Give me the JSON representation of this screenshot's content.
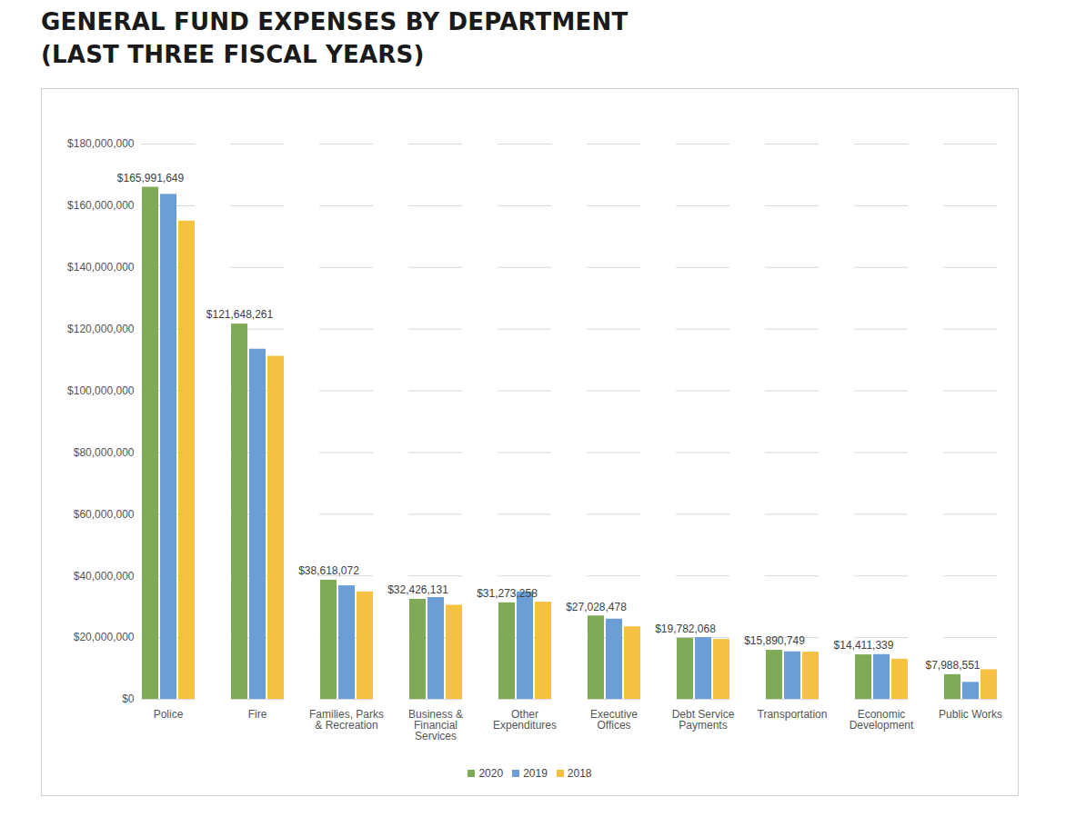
{
  "chart_data": {
    "type": "bar",
    "title": "GENERAL FUND EXPENSES BY DEPARTMENT (LAST THREE FISCAL YEARS)",
    "categories": [
      "Police",
      "Fire",
      "Families, Parks & Recreation",
      "Business & Financial Services",
      "Other Expenditures",
      "Executive Offices",
      "Debt Service Payments",
      "Transportation",
      "Economic Development",
      "Public Works"
    ],
    "series": [
      {
        "name": "2020",
        "color": "#7fab56",
        "data_labels": true,
        "values": [
          165991649,
          121648261,
          38618072,
          32426131,
          31273258,
          27028478,
          19782068,
          15890749,
          14411339,
          7988551
        ],
        "value_labels": [
          "$165,991,649",
          "$121,648,261",
          "$38,618,072",
          "$32,426,131",
          "$31,273,258",
          "$27,028,478",
          "$19,782,068",
          "$15,890,749",
          "$14,411,339",
          "$7,988,551"
        ]
      },
      {
        "name": "2019",
        "color": "#6b9dd6",
        "values": [
          163700000,
          113500000,
          36800000,
          33000000,
          34800000,
          26000000,
          20000000,
          15400000,
          14500000,
          5500000
        ]
      },
      {
        "name": "2018",
        "color": "#f6c143",
        "values": [
          155000000,
          111200000,
          34800000,
          30500000,
          31500000,
          23500000,
          19400000,
          15300000,
          13000000,
          9600000
        ]
      }
    ],
    "ylim": [
      0,
      180000000
    ],
    "yticks": [
      {
        "value": 0,
        "label": "$0"
      },
      {
        "value": 20000000,
        "label": "$20,000,000"
      },
      {
        "value": 40000000,
        "label": "$40,000,000"
      },
      {
        "value": 60000000,
        "label": "$60,000,000"
      },
      {
        "value": 80000000,
        "label": "$80,000,000"
      },
      {
        "value": 100000000,
        "label": "$100,000,000"
      },
      {
        "value": 120000000,
        "label": "$120,000,000"
      },
      {
        "value": 140000000,
        "label": "$140,000,000"
      },
      {
        "value": 160000000,
        "label": "$160,000,000"
      },
      {
        "value": 180000000,
        "label": "$180,000,000"
      }
    ],
    "grid": true,
    "legend": "bottom"
  }
}
